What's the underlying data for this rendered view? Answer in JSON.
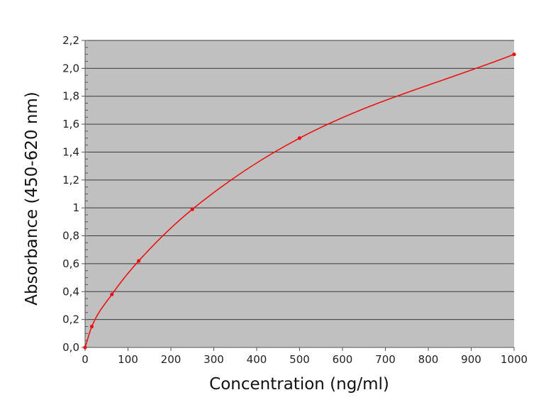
{
  "chart_data": {
    "type": "line",
    "xlabel": "Concentration (ng/ml)",
    "ylabel": "Absorbance (450-620 nm)",
    "xlim": [
      0,
      1000
    ],
    "ylim": [
      0,
      2.2
    ],
    "x_ticks": [
      0,
      100,
      200,
      300,
      400,
      500,
      600,
      700,
      800,
      900,
      1000
    ],
    "x_tick_labels": [
      "0",
      "100",
      "200",
      "300",
      "400",
      "500",
      "600",
      "700",
      "800",
      "900",
      "1000"
    ],
    "y_ticks": [
      0,
      0.2,
      0.4,
      0.6,
      0.8,
      1.0,
      1.2,
      1.4,
      1.6,
      1.8,
      2.0,
      2.2
    ],
    "y_tick_labels": [
      "0,0",
      "0,2",
      "0,4",
      "0,6",
      "0,8",
      "1",
      "1,2",
      "1,4",
      "1,6",
      "1,8",
      "2,0",
      "2,2"
    ],
    "grid": "horizontal",
    "plot_background": "#c0c0c0",
    "series": [
      {
        "color": "#ee1111",
        "x": [
          0,
          15.6,
          62.5,
          125,
          250,
          500,
          1000
        ],
        "y": [
          0.0,
          0.15,
          0.38,
          0.62,
          0.99,
          1.5,
          2.1
        ]
      }
    ]
  }
}
